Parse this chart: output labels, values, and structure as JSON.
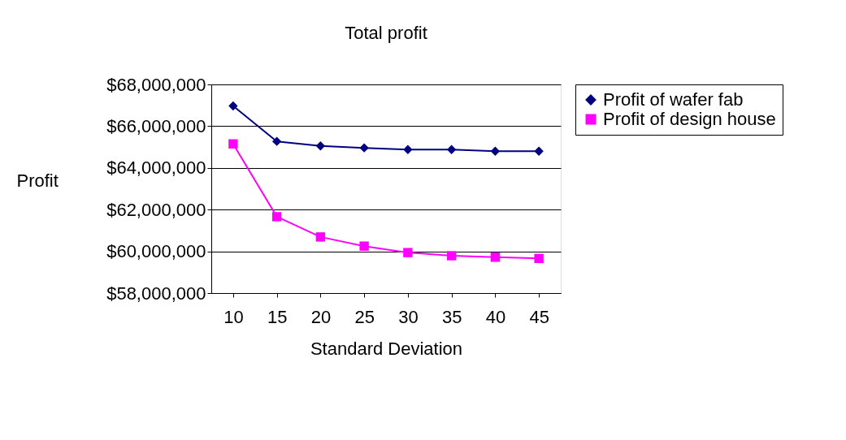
{
  "chart_data": {
    "type": "line",
    "title": "Total profit",
    "xlabel": "Standard Deviation",
    "ylabel": "Profit",
    "categories": [
      "10",
      "15",
      "20",
      "25",
      "30",
      "35",
      "40",
      "45"
    ],
    "series": [
      {
        "name": "Profit of wafer fab",
        "color": "#000080",
        "marker": "diamond",
        "values": [
          66970000,
          65270000,
          65050000,
          64960000,
          64880000,
          64880000,
          64800000,
          64800000
        ]
      },
      {
        "name": "Profit of design house",
        "color": "#ff00ff",
        "marker": "square",
        "values": [
          65150000,
          61660000,
          60690000,
          60250000,
          59940000,
          59790000,
          59720000,
          59660000
        ]
      }
    ],
    "ylim": [
      58000000,
      68000000
    ],
    "yticks": [
      {
        "value": 58000000,
        "label": "$58,000,000"
      },
      {
        "value": 60000000,
        "label": "$60,000,000"
      },
      {
        "value": 62000000,
        "label": "$62,000,000"
      },
      {
        "value": 64000000,
        "label": "$64,000,000"
      },
      {
        "value": 66000000,
        "label": "$66,000,000"
      },
      {
        "value": 68000000,
        "label": "$68,000,000"
      }
    ],
    "grid": "y",
    "legend": "right",
    "line_style": "solid"
  }
}
